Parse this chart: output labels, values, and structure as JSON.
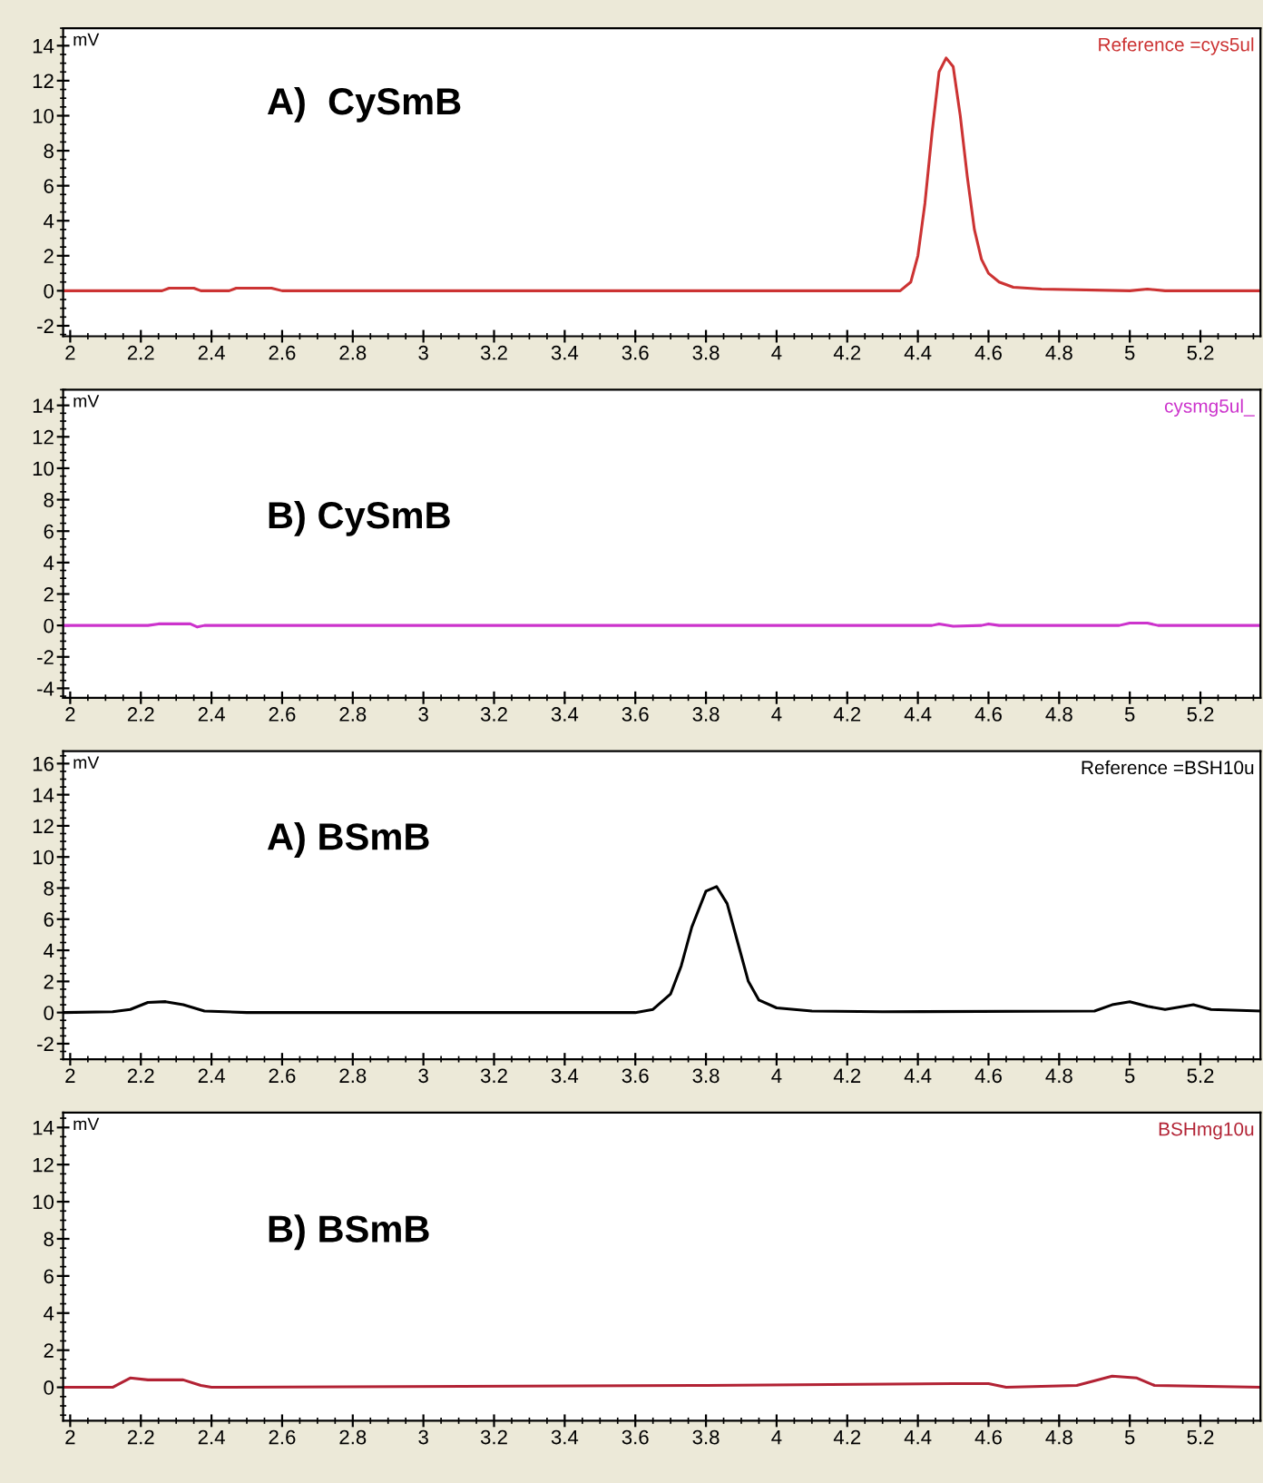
{
  "chart_data": [
    {
      "type": "line",
      "ylabel": "mV",
      "xlim": [
        1.98,
        5.37
      ],
      "xticks": [
        2,
        2.2,
        2.4,
        2.6,
        2.8,
        3,
        3.2,
        3.4,
        3.6,
        3.8,
        4,
        4.2,
        4.4,
        4.6,
        4.8,
        5,
        5.2
      ],
      "ylim": [
        -2.6,
        15
      ],
      "yticks": [
        -2,
        0,
        2,
        4,
        6,
        8,
        10,
        12,
        14
      ],
      "grid": false,
      "annotations": [
        "A)  CySmB"
      ],
      "series": [
        {
          "name": "Reference =cys5ul",
          "color": "#cc3333",
          "x": [
            1.98,
            2.26,
            2.28,
            2.35,
            2.37,
            2.45,
            2.47,
            2.57,
            2.6,
            4.35,
            4.38,
            4.4,
            4.42,
            4.44,
            4.46,
            4.48,
            4.5,
            4.52,
            4.54,
            4.56,
            4.58,
            4.6,
            4.63,
            4.67,
            4.75,
            5.0,
            5.05,
            5.1,
            5.37
          ],
          "values": [
            0,
            0,
            0.15,
            0.15,
            0,
            0,
            0.15,
            0.15,
            0,
            0,
            0.5,
            2,
            5,
            9,
            12.5,
            13.3,
            12.8,
            10,
            6.5,
            3.5,
            1.8,
            1,
            0.5,
            0.2,
            0.1,
            0,
            0.1,
            0,
            0
          ]
        }
      ]
    },
    {
      "type": "line",
      "ylabel": "mV",
      "xlim": [
        1.98,
        5.37
      ],
      "xticks": [
        2,
        2.2,
        2.4,
        2.6,
        2.8,
        3,
        3.2,
        3.4,
        3.6,
        3.8,
        4,
        4.2,
        4.4,
        4.6,
        4.8,
        5,
        5.2
      ],
      "ylim": [
        -4.6,
        15
      ],
      "yticks": [
        -4,
        -2,
        0,
        2,
        4,
        6,
        8,
        10,
        12,
        14
      ],
      "grid": false,
      "annotations": [
        "B) CySmB"
      ],
      "series": [
        {
          "name": "cysmg5ul_",
          "color": "#cc33cc",
          "x": [
            1.98,
            2.22,
            2.25,
            2.34,
            2.36,
            2.38,
            4.44,
            4.46,
            4.5,
            4.58,
            4.6,
            4.63,
            4.97,
            5.0,
            5.05,
            5.08,
            5.37
          ],
          "values": [
            0,
            0,
            0.1,
            0.1,
            -0.1,
            0,
            0,
            0.1,
            -0.05,
            0,
            0.1,
            0,
            0,
            0.15,
            0.15,
            0,
            0
          ]
        }
      ]
    },
    {
      "type": "line",
      "ylabel": "mV",
      "xlim": [
        1.98,
        5.37
      ],
      "xticks": [
        2,
        2.2,
        2.4,
        2.6,
        2.8,
        3,
        3.2,
        3.4,
        3.6,
        3.8,
        4,
        4.2,
        4.4,
        4.6,
        4.8,
        5,
        5.2
      ],
      "ylim": [
        -3,
        16.8
      ],
      "yticks": [
        -2,
        0,
        2,
        4,
        6,
        8,
        10,
        12,
        14,
        16
      ],
      "grid": false,
      "annotations": [
        "A) BSmB"
      ],
      "series": [
        {
          "name": "Reference =BSH10u",
          "color": "#000000",
          "x": [
            1.98,
            2.12,
            2.17,
            2.22,
            2.27,
            2.32,
            2.38,
            2.5,
            3.6,
            3.65,
            3.7,
            3.73,
            3.76,
            3.8,
            3.83,
            3.86,
            3.89,
            3.92,
            3.95,
            4.0,
            4.1,
            4.3,
            4.9,
            4.95,
            5.0,
            5.05,
            5.1,
            5.18,
            5.23,
            5.37
          ],
          "values": [
            0,
            0.05,
            0.2,
            0.65,
            0.7,
            0.5,
            0.1,
            0,
            0,
            0.2,
            1.2,
            3,
            5.5,
            7.8,
            8.1,
            7,
            4.5,
            2,
            0.8,
            0.3,
            0.1,
            0.05,
            0.1,
            0.5,
            0.7,
            0.4,
            0.2,
            0.5,
            0.2,
            0.1
          ]
        }
      ]
    },
    {
      "type": "line",
      "ylabel": "mV",
      "xlim": [
        1.98,
        5.37
      ],
      "xticks": [
        2,
        2.2,
        2.4,
        2.6,
        2.8,
        3,
        3.2,
        3.4,
        3.6,
        3.8,
        4,
        4.2,
        4.4,
        4.6,
        4.8,
        5,
        5.2
      ],
      "ylim": [
        -1.8,
        14.8
      ],
      "yticks": [
        0,
        2,
        4,
        6,
        8,
        10,
        12,
        14
      ],
      "grid": false,
      "annotations": [
        "B) BSmB"
      ],
      "series": [
        {
          "name": "BSHmg10u",
          "color": "#b22234",
          "x": [
            1.98,
            2.12,
            2.17,
            2.22,
            2.32,
            2.37,
            2.4,
            3.8,
            4.5,
            4.6,
            4.65,
            4.85,
            4.95,
            5.02,
            5.07,
            5.37
          ],
          "values": [
            0,
            0,
            0.5,
            0.4,
            0.4,
            0.1,
            0,
            0.1,
            0.2,
            0.2,
            0,
            0.1,
            0.6,
            0.5,
            0.1,
            0
          ]
        }
      ]
    }
  ]
}
